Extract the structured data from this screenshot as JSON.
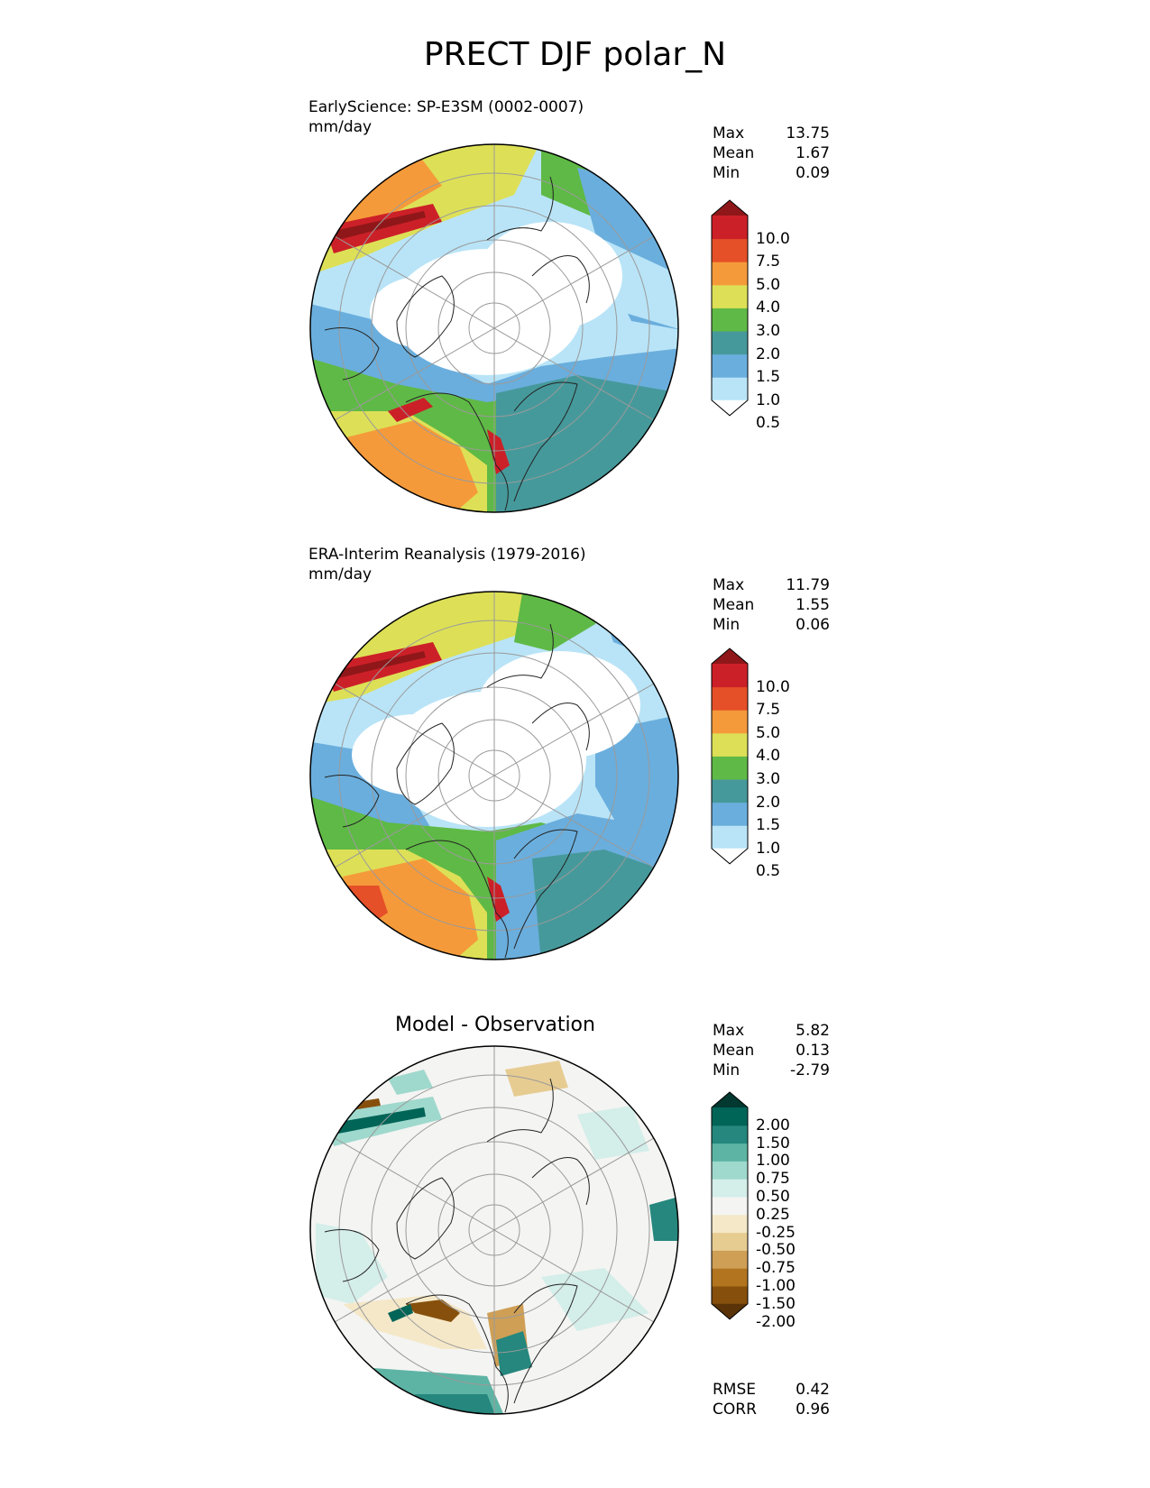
{
  "figure": {
    "title": "PRECT DJF polar_N"
  },
  "panels": [
    {
      "id": "test",
      "title": "EarlyScience: SP-E3SM (0002-0007)",
      "units": "mm/day",
      "stats": [
        {
          "label": "Max",
          "value": "13.75"
        },
        {
          "label": "Mean",
          "value": "1.67"
        },
        {
          "label": "Min",
          "value": "0.09"
        }
      ]
    },
    {
      "id": "reference",
      "title": "ERA-Interim Reanalysis (1979-2016)",
      "units": "mm/day",
      "stats": [
        {
          "label": "Max",
          "value": "11.79"
        },
        {
          "label": "Mean",
          "value": "1.55"
        },
        {
          "label": "Min",
          "value": "0.06"
        }
      ]
    },
    {
      "id": "difference",
      "title": "Model - Observation",
      "units": "",
      "stats": [
        {
          "label": "Max",
          "value": "5.82"
        },
        {
          "label": "Mean",
          "value": "0.13"
        },
        {
          "label": "Min",
          "value": "-2.79"
        }
      ],
      "metrics": [
        {
          "label": "RMSE",
          "value": "0.42"
        },
        {
          "label": "CORR",
          "value": "0.96"
        }
      ]
    }
  ],
  "colorbars": {
    "precip": {
      "levels": [
        "10.0",
        "7.5",
        "5.0",
        "4.0",
        "3.0",
        "2.0",
        "1.5",
        "1.0",
        "0.5"
      ],
      "colors_bottom_to_top": [
        "#ffffff",
        "#b9e4f7",
        "#6aaedd",
        "#46999b",
        "#5fb946",
        "#dde056",
        "#f59a3a",
        "#e55028",
        "#cc2028",
        "#8f1719"
      ]
    },
    "diff": {
      "levels": [
        "2.00",
        "1.50",
        "1.00",
        "0.75",
        "0.50",
        "0.25",
        "-0.25",
        "-0.50",
        "-0.75",
        "-1.00",
        "-1.50",
        "-2.00"
      ],
      "colors_bottom_to_top": [
        "#5a3408",
        "#86500c",
        "#b2741f",
        "#cf9f56",
        "#e7cc92",
        "#f5e8c8",
        "#f4f4f2",
        "#d4eee9",
        "#9fd8cc",
        "#5db4a4",
        "#25877d",
        "#006457",
        "#01382f"
      ]
    }
  }
}
